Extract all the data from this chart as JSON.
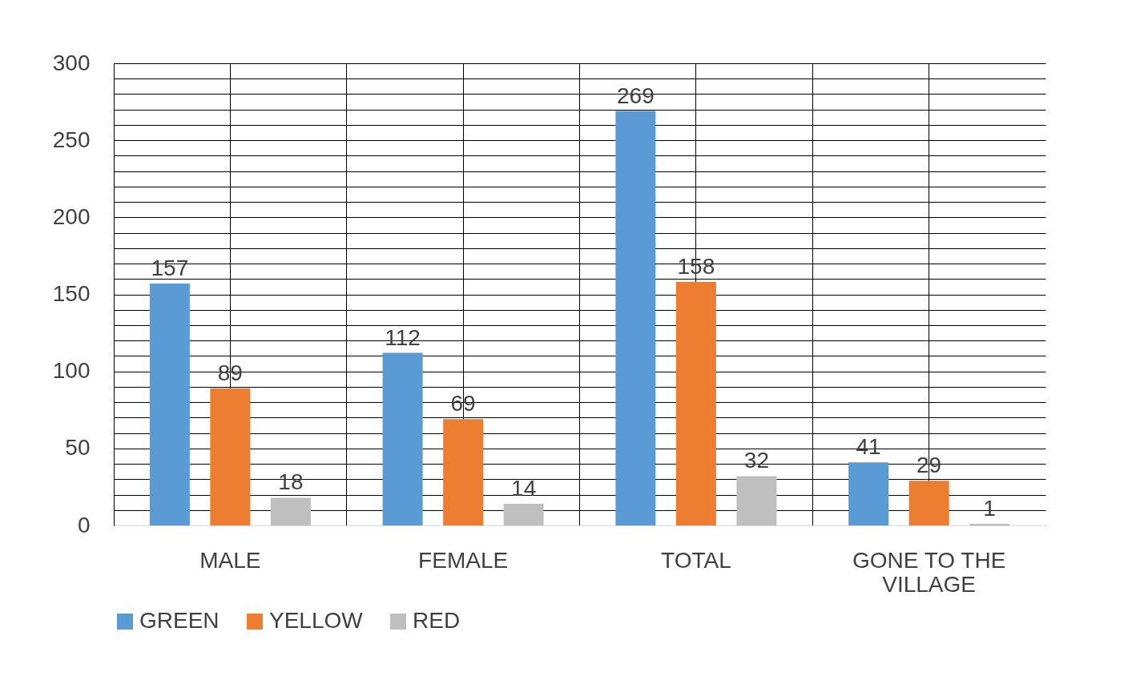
{
  "chart_data": {
    "type": "bar",
    "categories": [
      "MALE",
      "FEMALE",
      "TOTAL",
      "GONE TO THE VILLAGE"
    ],
    "series": [
      {
        "name": "GREEN",
        "color": "#5b9bd5",
        "values": [
          157,
          112,
          269,
          41
        ]
      },
      {
        "name": "YELLOW",
        "color": "#ed7d31",
        "values": [
          89,
          69,
          158,
          29
        ]
      },
      {
        "name": "RED",
        "color": "#bfbfbf",
        "values": [
          18,
          14,
          32,
          1
        ]
      }
    ],
    "ylim": [
      0,
      300
    ],
    "yticks": [
      0,
      {
        "value": 10,
        "label": null
      },
      {
        "value": 20,
        "label": null
      },
      {
        "value": 30,
        "label": null
      },
      {
        "value": 40,
        "label": null
      },
      50,
      {
        "value": 60,
        "label": null
      },
      {
        "value": 70,
        "label": null
      },
      {
        "value": 80,
        "label": null
      },
      {
        "value": 90,
        "label": null
      },
      100,
      {
        "value": 110,
        "label": null
      },
      {
        "value": 120,
        "label": null
      },
      {
        "value": 130,
        "label": null
      },
      {
        "value": 140,
        "label": null
      },
      150,
      {
        "value": 160,
        "label": null
      },
      {
        "value": 170,
        "label": null
      },
      {
        "value": 180,
        "label": null
      },
      {
        "value": 190,
        "label": null
      },
      200,
      {
        "value": 210,
        "label": null
      },
      {
        "value": 220,
        "label": null
      },
      {
        "value": 230,
        "label": null
      },
      {
        "value": 240,
        "label": null
      },
      250,
      {
        "value": 260,
        "label": null
      },
      {
        "value": 270,
        "label": null
      },
      {
        "value": 280,
        "label": null
      },
      {
        "value": 290,
        "label": null
      },
      300
    ],
    "grid": true,
    "legend": "bottom",
    "data_labels": true
  }
}
